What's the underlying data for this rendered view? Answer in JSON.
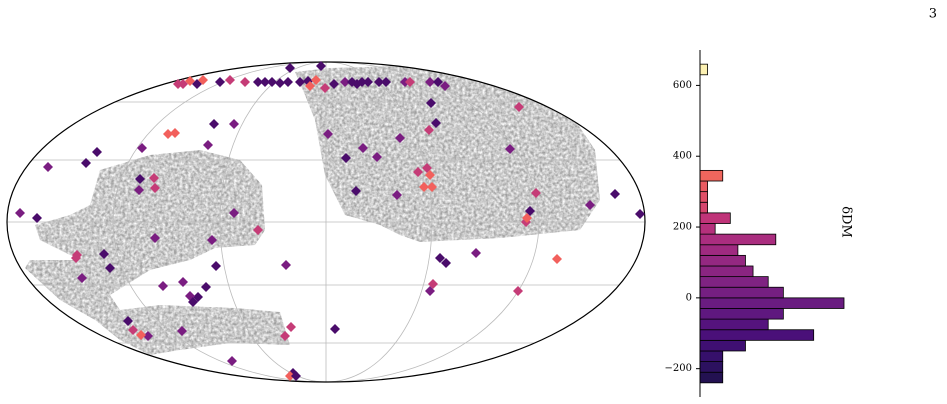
{
  "page_number": "3",
  "chart_data": [
    {
      "type": "scatter",
      "xlim": [
        0,
        638
      ],
      "ylim": [
        0,
        320
      ],
      "x": [
        314,
        283,
        251,
        258,
        265,
        273,
        281,
        293,
        301,
        238,
        223,
        213,
        190,
        183,
        176,
        171,
        196,
        309,
        303,
        318,
        327,
        338,
        345,
        350,
        355,
        361,
        372,
        379,
        398,
        403,
        423,
        431,
        438,
        424,
        512,
        207,
        227,
        168,
        161,
        135,
        201,
        90,
        79,
        41,
        422,
        429,
        321,
        393,
        503,
        356,
        339,
        370,
        420,
        411,
        423,
        133,
        147,
        132,
        148,
        349,
        417,
        425,
        390,
        529,
        608,
        583,
        633,
        13,
        30,
        227,
        523,
        519,
        520,
        251,
        148,
        205,
        70,
        69,
        97,
        433,
        439,
        469,
        550,
        279,
        103,
        209,
        176,
        199,
        426,
        423,
        511,
        75,
        156,
        191,
        183,
        186,
        121,
        126,
        141,
        134,
        175,
        328,
        284,
        278,
        225,
        286,
        283,
        289
      ],
      "y": [
        316,
        314,
        300,
        300,
        300,
        299,
        300,
        300,
        301,
        300,
        302,
        300,
        298,
        301,
        298,
        298,
        302,
        302,
        296,
        294,
        298,
        300,
        300,
        298,
        300,
        300,
        300,
        300,
        300,
        300,
        300,
        300,
        296,
        279,
        275,
        258,
        258,
        249,
        248,
        234,
        237,
        230,
        219,
        215,
        252,
        259,
        248,
        244,
        233,
        234,
        224,
        225,
        214,
        210,
        207,
        203,
        204,
        192,
        194,
        191,
        195,
        195,
        187,
        189,
        188,
        177,
        168,
        169,
        164,
        169,
        171,
        160,
        164,
        152,
        144,
        142,
        127,
        124,
        128,
        124,
        119,
        129,
        123,
        117,
        114,
        116,
        100,
        95,
        98,
        91,
        91,
        104,
        96,
        85,
        86,
        80,
        61,
        52,
        46,
        47,
        51,
        53,
        55,
        46,
        21,
        9,
        6,
        6
      ],
      "colors": [
        "#4a0c6b",
        "#4a0c6b",
        "#4a0c6b",
        "#4a0c6b",
        "#4a0c6b",
        "#4a0c6b",
        "#4a0c6b",
        "#4a0c6b",
        "#4a0c6b",
        "#c53c77",
        "#c53c77",
        "#4a0c6b",
        "#4a0c6b",
        "#f2605c",
        "#c53c77",
        "#c53c77",
        "#f2605c",
        "#f2605c",
        "#f2605c",
        "#c53c77",
        "#4a0c6b",
        "#7a1d81",
        "#4a0c6b",
        "#4a0c6b",
        "#4a0c6b",
        "#4a0c6b",
        "#4a0c6b",
        "#4a0c6b",
        "#7a1d81",
        "#c53c77",
        "#7a1d81",
        "#4a0c6b",
        "#7a1d81",
        "#4a0c6b",
        "#c53c77",
        "#4a0c6b",
        "#7a1d81",
        "#f2605c",
        "#f2605c",
        "#7a1d81",
        "#7a1d81",
        "#4a0c6b",
        "#4a0c6b",
        "#7a1d81",
        "#c53c77",
        "#4a0c6b",
        "#7a1d81",
        "#7a1d81",
        "#7a1d81",
        "#7a1d81",
        "#4a0c6b",
        "#7a1d81",
        "#c53c77",
        "#c53c77",
        "#f2605c",
        "#4a0c6b",
        "#c53c77",
        "#7a1d81",
        "#c53c77",
        "#4a0c6b",
        "#f2605c",
        "#f2605c",
        "#7a1d81",
        "#c53c77",
        "#4a0c6b",
        "#7a1d81",
        "#4a0c6b",
        "#7a1d81",
        "#4a0c6b",
        "#7a1d81",
        "#4a0c6b",
        "#c53c77",
        "#f2605c",
        "#c53c77",
        "#7a1d81",
        "#7a1d81",
        "#c53c77",
        "#c53c77",
        "#4a0c6b",
        "#4a0c6b",
        "#4a0c6b",
        "#7a1d81",
        "#f2605c",
        "#7a1d81",
        "#4a0c6b",
        "#4a0c6b",
        "#7a1d81",
        "#4a0c6b",
        "#c53c77",
        "#7a1d81",
        "#c53c77",
        "#7a1d81",
        "#7a1d81",
        "#4a0c6b",
        "#7a1d81",
        "#4a0c6b",
        "#4a0c6b",
        "#c53c77",
        "#7a1d81",
        "#f2605c",
        "#7a1d81",
        "#4a0c6b",
        "#c53c77",
        "#c53c77",
        "#7a1d81",
        "#4a0c6b",
        "#f2605c",
        "#4a0c6b"
      ]
    },
    {
      "type": "histogram",
      "orientation": "horizontal",
      "ylabel": "δDM",
      "bins": [
        -240,
        -210,
        -180,
        -150,
        -120,
        -90,
        -60,
        -30,
        0,
        30,
        60,
        90,
        120,
        150,
        180,
        210,
        240,
        270,
        300,
        330,
        360,
        390,
        420,
        450,
        480,
        510,
        540,
        570,
        600,
        630,
        660
      ],
      "counts": [
        3,
        3,
        3,
        6,
        15,
        9,
        11,
        19,
        11,
        9,
        7,
        6,
        5,
        10,
        2,
        4,
        1,
        1,
        1,
        3,
        0,
        0,
        0,
        0,
        0,
        0,
        0,
        0,
        0,
        1
      ],
      "colors": [
        "#231151",
        "#2c115f",
        "#36106b",
        "#3f0f72",
        "#4a1079",
        "#55137d",
        "#5f187f",
        "#6a1c81",
        "#751f81",
        "#7f2382",
        "#8a2581",
        "#942881",
        "#9f2a80",
        "#aa2d7f",
        "#b5307c",
        "#c03479",
        "#d6456e",
        "#e04f67",
        "#ea5a61",
        "#f0665d",
        "#f6775c",
        "#f9885f",
        "#fb9a66",
        "#fcab6f",
        "#fdbd7a",
        "#fdcd87",
        "#fede96",
        "#fdeca6",
        "#fcf6b3",
        "#fcf1b2"
      ],
      "xlim": [
        0,
        19
      ],
      "ylim": [
        -280,
        700
      ],
      "yticks": [
        {
          "value": -200,
          "label": "−200"
        },
        0,
        200,
        400,
        600
      ]
    }
  ]
}
